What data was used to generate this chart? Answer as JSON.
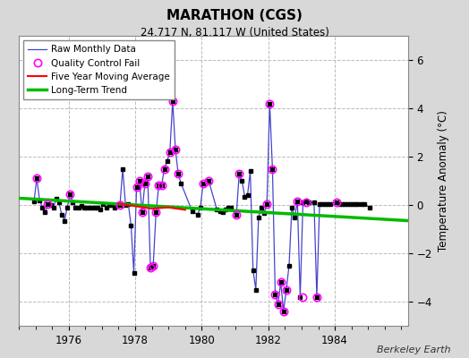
{
  "title": "MARATHON (CGS)",
  "subtitle": "24.717 N, 81.117 W (United States)",
  "ylabel": "Temperature Anomaly (°C)",
  "credit": "Berkeley Earth",
  "xlim": [
    1974.5,
    1986.2
  ],
  "ylim": [
    -5.0,
    7.0
  ],
  "yticks": [
    -4,
    -2,
    0,
    2,
    4,
    6
  ],
  "xticks": [
    1976,
    1978,
    1980,
    1982,
    1984
  ],
  "background_color": "#d8d8d8",
  "plot_bg_color": "#ffffff",
  "grid_color": "#bbbbbb",
  "raw_line_color": "#4444cc",
  "raw_marker_color": "#000000",
  "qc_fail_color": "#ff00ff",
  "moving_avg_color": "#ff0000",
  "trend_color": "#00bb00",
  "raw_x": [
    1974.958,
    1975.042,
    1975.125,
    1975.208,
    1975.292,
    1975.375,
    1975.458,
    1975.542,
    1975.625,
    1975.708,
    1975.792,
    1975.875,
    1975.958,
    1976.042,
    1976.125,
    1976.208,
    1976.292,
    1976.375,
    1976.458,
    1976.542,
    1976.625,
    1976.708,
    1976.792,
    1976.875,
    1976.958,
    1977.042,
    1977.125,
    1977.208,
    1977.292,
    1977.375,
    1977.458,
    1977.542,
    1977.625,
    1977.708,
    1977.792,
    1977.875,
    1977.958,
    1978.042,
    1978.125,
    1978.208,
    1978.292,
    1978.375,
    1978.458,
    1978.542,
    1978.625,
    1978.708,
    1978.792,
    1978.875,
    1978.958,
    1979.042,
    1979.125,
    1979.208,
    1979.292,
    1979.375,
    1979.708,
    1979.875,
    1979.958,
    1980.042,
    1980.208,
    1980.458,
    1980.542,
    1980.625,
    1980.708,
    1980.792,
    1980.875,
    1981.042,
    1981.125,
    1981.208,
    1981.292,
    1981.375,
    1981.458,
    1981.542,
    1981.625,
    1981.708,
    1981.792,
    1981.875,
    1981.958,
    1982.042,
    1982.125,
    1982.208,
    1982.292,
    1982.375,
    1982.458,
    1982.542,
    1982.625,
    1982.708,
    1982.792,
    1982.875,
    1982.958,
    1983.042,
    1983.125,
    1983.208,
    1983.375,
    1983.458,
    1983.542,
    1983.625,
    1983.708,
    1983.792,
    1983.875,
    1984.042,
    1984.125,
    1984.208,
    1984.292,
    1984.375,
    1984.458,
    1984.542,
    1984.625,
    1984.708,
    1984.792,
    1984.875,
    1985.042
  ],
  "raw_y": [
    0.15,
    1.1,
    0.2,
    -0.1,
    -0.3,
    0.05,
    0.0,
    -0.1,
    0.25,
    0.1,
    -0.4,
    -0.65,
    -0.1,
    0.45,
    0.1,
    -0.1,
    -0.1,
    -0.05,
    -0.1,
    -0.1,
    -0.1,
    -0.1,
    -0.1,
    -0.1,
    -0.2,
    0.05,
    -0.1,
    0.0,
    0.0,
    -0.1,
    0.0,
    0.0,
    1.5,
    0.0,
    0.05,
    -0.85,
    -2.8,
    0.75,
    1.0,
    -0.3,
    0.9,
    1.2,
    -2.6,
    -2.5,
    -0.3,
    0.8,
    0.8,
    1.5,
    1.8,
    2.2,
    4.3,
    2.3,
    1.3,
    0.9,
    -0.25,
    -0.4,
    -0.1,
    0.9,
    1.0,
    -0.2,
    -0.25,
    -0.3,
    -0.2,
    -0.1,
    -0.1,
    -0.4,
    1.3,
    1.0,
    0.35,
    0.4,
    1.4,
    -2.7,
    -3.5,
    -0.5,
    -0.1,
    -0.35,
    0.05,
    4.2,
    1.5,
    -3.7,
    -4.1,
    -3.2,
    -4.4,
    -3.5,
    -2.5,
    -0.1,
    -0.5,
    0.15,
    -3.8,
    0.1,
    0.15,
    0.1,
    0.1,
    -3.8,
    0.05,
    0.05,
    0.05,
    0.05,
    0.05,
    0.1,
    0.05,
    0.05,
    0.05,
    0.05,
    0.05,
    0.05,
    0.05,
    0.05,
    0.05,
    0.05,
    -0.1
  ],
  "qc_fail_x": [
    1975.042,
    1975.375,
    1976.042,
    1977.542,
    1978.042,
    1978.125,
    1978.208,
    1978.292,
    1978.375,
    1978.458,
    1978.542,
    1978.625,
    1978.708,
    1978.792,
    1978.875,
    1979.042,
    1979.125,
    1979.208,
    1979.292,
    1980.042,
    1980.208,
    1981.042,
    1981.125,
    1981.958,
    1982.042,
    1982.125,
    1982.208,
    1982.292,
    1982.375,
    1982.458,
    1982.542,
    1982.875,
    1983.042,
    1983.125,
    1983.458,
    1984.042
  ],
  "qc_fail_y": [
    1.1,
    0.05,
    0.45,
    0.0,
    0.75,
    1.0,
    -0.3,
    0.9,
    1.2,
    -2.6,
    -2.5,
    -0.3,
    0.8,
    0.8,
    1.5,
    2.2,
    4.3,
    2.3,
    1.3,
    0.9,
    1.0,
    -0.4,
    1.3,
    0.05,
    4.2,
    1.5,
    -3.7,
    -4.1,
    -3.2,
    -4.4,
    -3.5,
    0.15,
    -3.8,
    0.1,
    -3.8,
    0.1
  ],
  "trend_x": [
    1974.5,
    1986.2
  ],
  "trend_y": [
    0.28,
    -0.65
  ],
  "moving_avg_x": [
    1977.5,
    1978.0,
    1978.5,
    1979.0,
    1979.5
  ],
  "moving_avg_y": [
    0.05,
    -0.05,
    -0.15,
    -0.1,
    -0.2
  ]
}
